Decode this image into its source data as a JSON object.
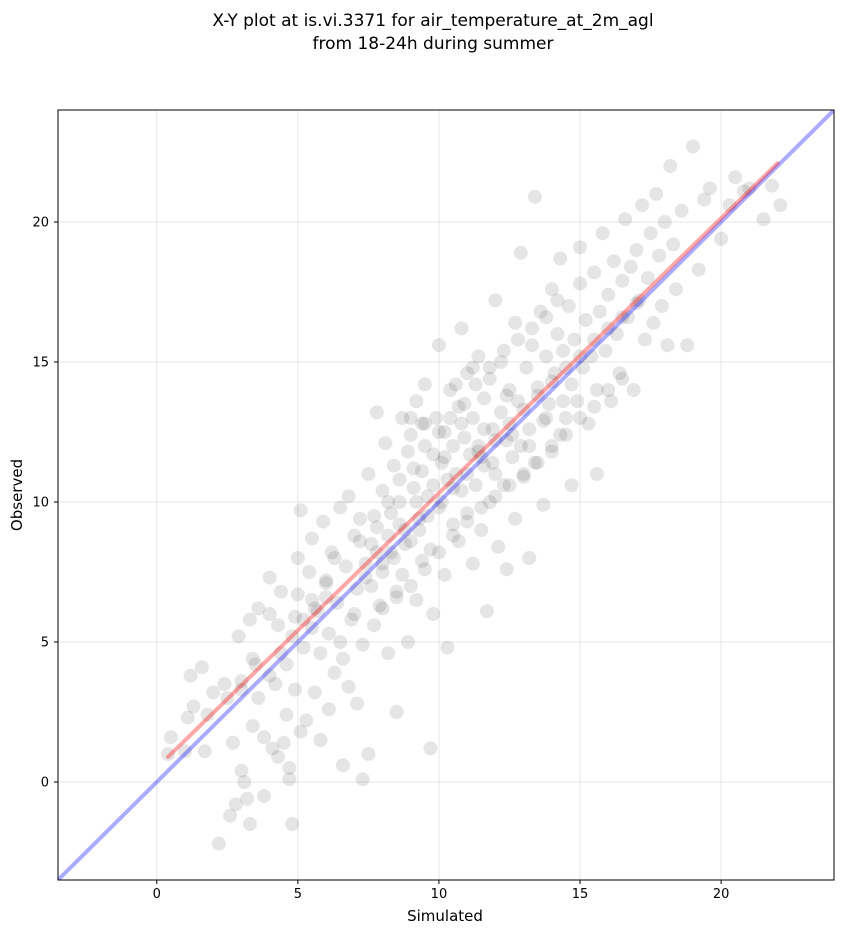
{
  "chart_data": {
    "type": "scatter",
    "title_line1": "X-Y plot at is.vi.3371 for air_temperature_at_2m_agl",
    "title_line2": "from 18-24h during summer",
    "xlabel": "Simulated",
    "ylabel": "Observed",
    "xlim": [
      -3.5,
      24
    ],
    "ylim": [
      -3.5,
      24
    ],
    "xticks": [
      0,
      5,
      10,
      15,
      20
    ],
    "yticks": [
      0,
      5,
      10,
      15,
      20
    ],
    "grid": true,
    "colors": {
      "points": "#000000",
      "identity_line": "#0000ff",
      "fit_line": "#ff0000"
    },
    "identity_line": {
      "x": [
        -3.5,
        24
      ],
      "y": [
        -3.5,
        24
      ]
    },
    "fit_line": {
      "x": [
        0.4,
        22
      ],
      "y": [
        0.9,
        22.1
      ]
    },
    "points": [
      [
        0.4,
        1.0
      ],
      [
        0.5,
        1.6
      ],
      [
        1.0,
        1.1
      ],
      [
        1.1,
        2.3
      ],
      [
        1.2,
        3.8
      ],
      [
        1.3,
        2.7
      ],
      [
        1.6,
        4.1
      ],
      [
        1.7,
        1.1
      ],
      [
        1.8,
        2.4
      ],
      [
        2.0,
        3.2
      ],
      [
        2.2,
        -2.2
      ],
      [
        2.4,
        3.5
      ],
      [
        2.6,
        -1.2
      ],
      [
        2.7,
        1.4
      ],
      [
        2.8,
        -0.8
      ],
      [
        2.9,
        5.2
      ],
      [
        3.0,
        0.4
      ],
      [
        3.0,
        3.3
      ],
      [
        3.1,
        0.0
      ],
      [
        3.2,
        -0.6
      ],
      [
        3.3,
        -1.5
      ],
      [
        3.3,
        5.8
      ],
      [
        3.4,
        2.0
      ],
      [
        3.5,
        4.2
      ],
      [
        3.6,
        6.2
      ],
      [
        3.8,
        1.6
      ],
      [
        3.8,
        -0.5
      ],
      [
        4.0,
        6.0
      ],
      [
        4.0,
        7.3
      ],
      [
        4.1,
        1.2
      ],
      [
        4.2,
        3.5
      ],
      [
        4.3,
        0.9
      ],
      [
        4.3,
        5.6
      ],
      [
        4.4,
        6.8
      ],
      [
        4.5,
        1.4
      ],
      [
        4.6,
        2.4
      ],
      [
        4.6,
        4.2
      ],
      [
        4.7,
        0.5
      ],
      [
        4.7,
        0.1
      ],
      [
        4.8,
        -1.5
      ],
      [
        4.9,
        3.3
      ],
      [
        4.9,
        5.9
      ],
      [
        5.0,
        8.0
      ],
      [
        5.0,
        6.7
      ],
      [
        5.1,
        1.8
      ],
      [
        5.1,
        9.7
      ],
      [
        5.2,
        4.8
      ],
      [
        5.3,
        2.2
      ],
      [
        5.4,
        7.5
      ],
      [
        5.5,
        5.5
      ],
      [
        5.5,
        8.7
      ],
      [
        5.6,
        3.2
      ],
      [
        5.7,
        6.1
      ],
      [
        5.8,
        1.5
      ],
      [
        5.8,
        4.6
      ],
      [
        5.9,
        9.3
      ],
      [
        6.0,
        7.1
      ],
      [
        6.1,
        2.6
      ],
      [
        6.1,
        5.3
      ],
      [
        6.2,
        8.2
      ],
      [
        6.3,
        3.9
      ],
      [
        6.4,
        6.4
      ],
      [
        6.5,
        9.8
      ],
      [
        6.6,
        0.6
      ],
      [
        6.6,
        4.4
      ],
      [
        6.7,
        7.7
      ],
      [
        6.8,
        3.4
      ],
      [
        6.8,
        10.2
      ],
      [
        6.9,
        5.8
      ],
      [
        7.0,
        8.8
      ],
      [
        7.1,
        2.8
      ],
      [
        7.1,
        6.9
      ],
      [
        7.2,
        9.4
      ],
      [
        7.3,
        0.1
      ],
      [
        7.3,
        4.9
      ],
      [
        7.4,
        7.3
      ],
      [
        7.5,
        11.0
      ],
      [
        7.5,
        1.0
      ],
      [
        7.6,
        8.5
      ],
      [
        7.7,
        5.6
      ],
      [
        7.8,
        9.1
      ],
      [
        7.8,
        13.2
      ],
      [
        7.9,
        6.3
      ],
      [
        8.0,
        10.4
      ],
      [
        8.0,
        7.8
      ],
      [
        8.1,
        12.1
      ],
      [
        8.2,
        4.6
      ],
      [
        8.3,
        9.6
      ],
      [
        8.3,
        8.2
      ],
      [
        8.4,
        11.3
      ],
      [
        8.5,
        6.8
      ],
      [
        8.5,
        2.5
      ],
      [
        8.6,
        10.0
      ],
      [
        8.7,
        13.0
      ],
      [
        8.7,
        7.4
      ],
      [
        8.8,
        9.0
      ],
      [
        8.9,
        11.8
      ],
      [
        8.9,
        5.0
      ],
      [
        9.0,
        8.6
      ],
      [
        9.0,
        12.4
      ],
      [
        9.1,
        10.5
      ],
      [
        9.2,
        6.5
      ],
      [
        9.2,
        13.6
      ],
      [
        9.3,
        9.4
      ],
      [
        9.4,
        11.1
      ],
      [
        9.4,
        7.9
      ],
      [
        9.5,
        12.8
      ],
      [
        9.5,
        14.2
      ],
      [
        9.6,
        10.2
      ],
      [
        9.7,
        8.3
      ],
      [
        9.7,
        1.2
      ],
      [
        9.8,
        11.7
      ],
      [
        9.8,
        6.0
      ],
      [
        9.9,
        13.0
      ],
      [
        10.0,
        9.8
      ],
      [
        10.0,
        15.6
      ],
      [
        10.1,
        11.4
      ],
      [
        10.2,
        7.4
      ],
      [
        10.2,
        12.5
      ],
      [
        10.3,
        10.8
      ],
      [
        10.3,
        4.8
      ],
      [
        10.4,
        14.0
      ],
      [
        10.5,
        9.2
      ],
      [
        10.5,
        12.0
      ],
      [
        10.6,
        11.0
      ],
      [
        10.7,
        13.4
      ],
      [
        10.7,
        8.6
      ],
      [
        10.8,
        10.4
      ],
      [
        10.8,
        16.2
      ],
      [
        10.9,
        12.3
      ],
      [
        11.0,
        9.6
      ],
      [
        11.0,
        14.6
      ],
      [
        11.1,
        11.7
      ],
      [
        11.2,
        7.8
      ],
      [
        11.2,
        13.0
      ],
      [
        11.3,
        10.6
      ],
      [
        11.4,
        15.2
      ],
      [
        11.4,
        12.0
      ],
      [
        11.5,
        9.0
      ],
      [
        11.6,
        13.7
      ],
      [
        11.6,
        11.3
      ],
      [
        11.7,
        6.1
      ],
      [
        11.8,
        14.4
      ],
      [
        11.8,
        10.0
      ],
      [
        11.9,
        12.6
      ],
      [
        12.0,
        17.2
      ],
      [
        12.0,
        11.0
      ],
      [
        12.1,
        8.4
      ],
      [
        12.2,
        13.2
      ],
      [
        12.2,
        15.0
      ],
      [
        12.3,
        10.6
      ],
      [
        12.4,
        12.2
      ],
      [
        12.4,
        7.6
      ],
      [
        12.5,
        14.0
      ],
      [
        12.6,
        11.6
      ],
      [
        12.7,
        16.4
      ],
      [
        12.7,
        9.4
      ],
      [
        12.8,
        13.6
      ],
      [
        12.9,
        12.0
      ],
      [
        12.9,
        18.9
      ],
      [
        13.0,
        10.9
      ],
      [
        13.1,
        14.8
      ],
      [
        13.2,
        12.6
      ],
      [
        13.2,
        8.0
      ],
      [
        13.3,
        15.6
      ],
      [
        13.4,
        20.9
      ],
      [
        13.4,
        11.4
      ],
      [
        13.5,
        14.1
      ],
      [
        13.6,
        16.8
      ],
      [
        13.7,
        12.9
      ],
      [
        13.7,
        9.9
      ],
      [
        13.8,
        15.2
      ],
      [
        13.9,
        13.5
      ],
      [
        14.0,
        17.6
      ],
      [
        14.0,
        11.8
      ],
      [
        14.1,
        14.6
      ],
      [
        14.2,
        16.0
      ],
      [
        14.3,
        12.4
      ],
      [
        14.3,
        18.7
      ],
      [
        14.4,
        15.4
      ],
      [
        14.5,
        13.0
      ],
      [
        14.6,
        17.0
      ],
      [
        14.7,
        14.2
      ],
      [
        14.7,
        10.6
      ],
      [
        14.8,
        15.8
      ],
      [
        14.9,
        13.6
      ],
      [
        15.0,
        17.8
      ],
      [
        15.0,
        19.1
      ],
      [
        15.1,
        14.8
      ],
      [
        15.2,
        16.5
      ],
      [
        15.3,
        12.8
      ],
      [
        15.4,
        15.2
      ],
      [
        15.5,
        18.2
      ],
      [
        15.6,
        14.0
      ],
      [
        15.6,
        11.0
      ],
      [
        15.7,
        16.8
      ],
      [
        15.8,
        19.6
      ],
      [
        15.9,
        15.4
      ],
      [
        16.0,
        17.4
      ],
      [
        16.1,
        13.6
      ],
      [
        16.2,
        18.6
      ],
      [
        16.3,
        16.0
      ],
      [
        16.4,
        14.6
      ],
      [
        16.5,
        17.9
      ],
      [
        16.6,
        20.1
      ],
      [
        16.7,
        16.6
      ],
      [
        16.8,
        18.4
      ],
      [
        16.9,
        14.0
      ],
      [
        17.0,
        19.0
      ],
      [
        17.1,
        17.2
      ],
      [
        17.2,
        20.6
      ],
      [
        17.3,
        15.8
      ],
      [
        17.4,
        18.0
      ],
      [
        17.5,
        19.6
      ],
      [
        17.6,
        16.4
      ],
      [
        17.7,
        21.0
      ],
      [
        17.8,
        18.8
      ],
      [
        17.9,
        17.0
      ],
      [
        18.0,
        20.0
      ],
      [
        18.1,
        15.6
      ],
      [
        18.2,
        22.0
      ],
      [
        18.3,
        19.2
      ],
      [
        18.4,
        17.6
      ],
      [
        18.6,
        20.4
      ],
      [
        18.8,
        15.6
      ],
      [
        19.0,
        22.7
      ],
      [
        19.2,
        18.3
      ],
      [
        19.4,
        20.8
      ],
      [
        19.6,
        21.2
      ],
      [
        20.0,
        19.4
      ],
      [
        20.3,
        20.6
      ],
      [
        20.5,
        21.6
      ],
      [
        20.8,
        21.1
      ],
      [
        21.0,
        21.2
      ],
      [
        21.5,
        20.1
      ],
      [
        21.8,
        21.3
      ],
      [
        22.1,
        20.6
      ],
      [
        6.5,
        5.0
      ],
      [
        7.0,
        6.0
      ],
      [
        7.6,
        7.0
      ],
      [
        8.0,
        7.5
      ],
      [
        8.4,
        8.0
      ],
      [
        8.8,
        8.5
      ],
      [
        9.3,
        9.0
      ],
      [
        9.6,
        9.5
      ],
      [
        10.1,
        10.0
      ],
      [
        10.5,
        10.5
      ],
      [
        11.0,
        11.0
      ],
      [
        11.5,
        11.6
      ],
      [
        12.0,
        12.2
      ],
      [
        12.5,
        12.8
      ],
      [
        13.0,
        13.3
      ],
      [
        13.5,
        13.8
      ],
      [
        14.0,
        14.3
      ],
      [
        14.5,
        14.8
      ],
      [
        15.0,
        15.2
      ],
      [
        15.5,
        15.8
      ],
      [
        16.0,
        16.2
      ],
      [
        16.5,
        16.6
      ],
      [
        17.0,
        17.1
      ],
      [
        5.5,
        6.5
      ],
      [
        6.0,
        7.2
      ],
      [
        6.3,
        8.0
      ],
      [
        7.2,
        8.6
      ],
      [
        7.7,
        9.5
      ],
      [
        8.2,
        10.0
      ],
      [
        8.6,
        10.8
      ],
      [
        9.1,
        11.2
      ],
      [
        9.5,
        12.0
      ],
      [
        10.0,
        12.5
      ],
      [
        10.4,
        13.0
      ],
      [
        10.9,
        13.5
      ],
      [
        11.3,
        14.2
      ],
      [
        11.8,
        14.8
      ],
      [
        12.3,
        15.4
      ],
      [
        12.8,
        15.8
      ],
      [
        13.3,
        16.2
      ],
      [
        13.8,
        16.6
      ],
      [
        14.2,
        17.2
      ],
      [
        8.0,
        6.2
      ],
      [
        8.5,
        6.6
      ],
      [
        9.0,
        7.0
      ],
      [
        9.5,
        7.6
      ],
      [
        10.0,
        8.2
      ],
      [
        10.5,
        8.8
      ],
      [
        11.0,
        9.3
      ],
      [
        11.5,
        9.8
      ],
      [
        12.0,
        10.2
      ],
      [
        12.5,
        10.6
      ],
      [
        13.0,
        11.0
      ],
      [
        13.5,
        11.4
      ],
      [
        14.0,
        12.0
      ],
      [
        14.5,
        12.4
      ],
      [
        15.0,
        13.0
      ],
      [
        15.5,
        13.4
      ],
      [
        16.0,
        14.0
      ],
      [
        16.5,
        14.4
      ],
      [
        3.6,
        3.0
      ],
      [
        4.0,
        3.8
      ],
      [
        4.4,
        4.6
      ],
      [
        4.8,
        5.2
      ],
      [
        5.2,
        5.8
      ],
      [
        5.6,
        6.2
      ],
      [
        6.0,
        6.6
      ],
      [
        2.5,
        3.0
      ],
      [
        3.0,
        3.6
      ],
      [
        3.4,
        4.4
      ],
      [
        9.0,
        13.0
      ],
      [
        9.4,
        12.8
      ],
      [
        10.6,
        14.2
      ],
      [
        11.2,
        14.8
      ],
      [
        12.4,
        13.8
      ],
      [
        11.6,
        12.6
      ],
      [
        10.8,
        12.8
      ],
      [
        10.2,
        11.6
      ],
      [
        9.8,
        10.6
      ],
      [
        9.2,
        10.0
      ],
      [
        8.6,
        9.2
      ],
      [
        8.2,
        8.8
      ],
      [
        7.8,
        8.2
      ],
      [
        7.4,
        7.8
      ],
      [
        12.6,
        12.4
      ],
      [
        13.2,
        12.0
      ],
      [
        13.8,
        13.0
      ],
      [
        14.4,
        13.6
      ],
      [
        11.4,
        11.8
      ],
      [
        11.9,
        11.4
      ]
    ]
  }
}
